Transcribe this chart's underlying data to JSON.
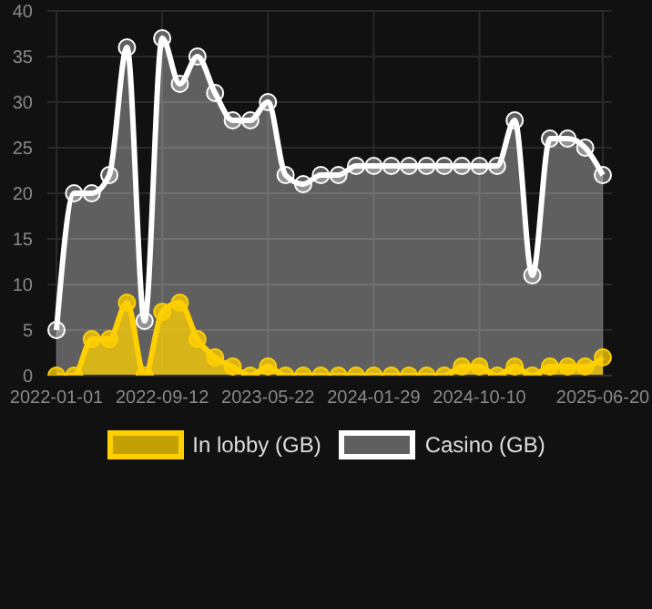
{
  "chart_data": {
    "type": "area",
    "categories": [
      "2022-01-01",
      null,
      null,
      null,
      null,
      null,
      "2022-09-12",
      null,
      null,
      null,
      null,
      null,
      "2023-05-22",
      null,
      null,
      null,
      null,
      null,
      "2024-01-29",
      null,
      null,
      null,
      null,
      null,
      "2024-10-10",
      null,
      null,
      null,
      null,
      null,
      null,
      "2025-06-20"
    ],
    "series": [
      {
        "name": "In lobby (GB)",
        "color": "#ffd000",
        "values": [
          0,
          0,
          4,
          4,
          8,
          0,
          7,
          8,
          4,
          2,
          1,
          0,
          1,
          0,
          0,
          0,
          0,
          0,
          0,
          0,
          0,
          0,
          0,
          1,
          1,
          0,
          1,
          0,
          1,
          1,
          1,
          2
        ]
      },
      {
        "name": "Casino (GB)",
        "color": "#ffffff",
        "values": [
          5,
          20,
          20,
          22,
          36,
          6,
          37,
          32,
          35,
          31,
          28,
          28,
          30,
          22,
          21,
          22,
          22,
          23,
          23,
          23,
          23,
          23,
          23,
          23,
          23,
          23,
          28,
          11,
          26,
          26,
          25,
          22
        ]
      }
    ],
    "ylim": [
      0,
      40
    ],
    "yticks": [
      0,
      5,
      10,
      15,
      20,
      25,
      30,
      35,
      40
    ],
    "grid": true,
    "legend": "bottom",
    "marker": "circle"
  }
}
